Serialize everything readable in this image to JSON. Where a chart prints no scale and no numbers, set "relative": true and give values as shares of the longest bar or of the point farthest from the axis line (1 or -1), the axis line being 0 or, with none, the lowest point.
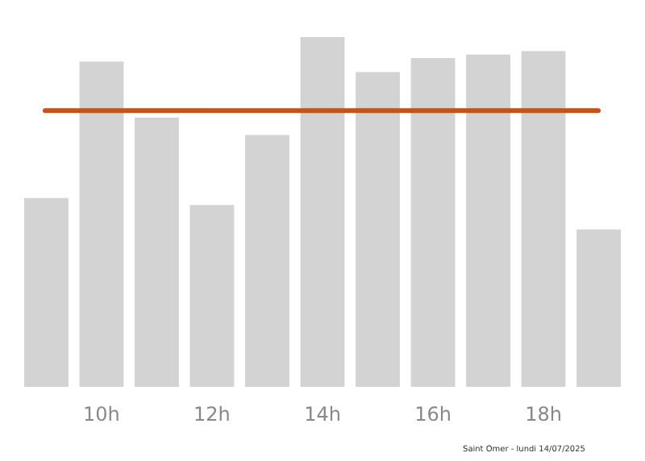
{
  "chart_data": {
    "type": "bar",
    "relative": true,
    "categories": [
      null,
      "10h",
      null,
      "12h",
      null,
      "14h",
      null,
      "16h",
      null,
      "18h",
      null
    ],
    "values": [
      0.54,
      0.93,
      0.77,
      0.52,
      0.72,
      1,
      0.9,
      0.94,
      0.95,
      0.96,
      0.45
    ],
    "color": "#d3d3d3",
    "ref_lines": [
      {
        "axis": "y",
        "value": 0.79,
        "color": "#c8501a"
      }
    ],
    "annotations": [
      "Saint Omer - lundi 14/07/2025"
    ]
  }
}
